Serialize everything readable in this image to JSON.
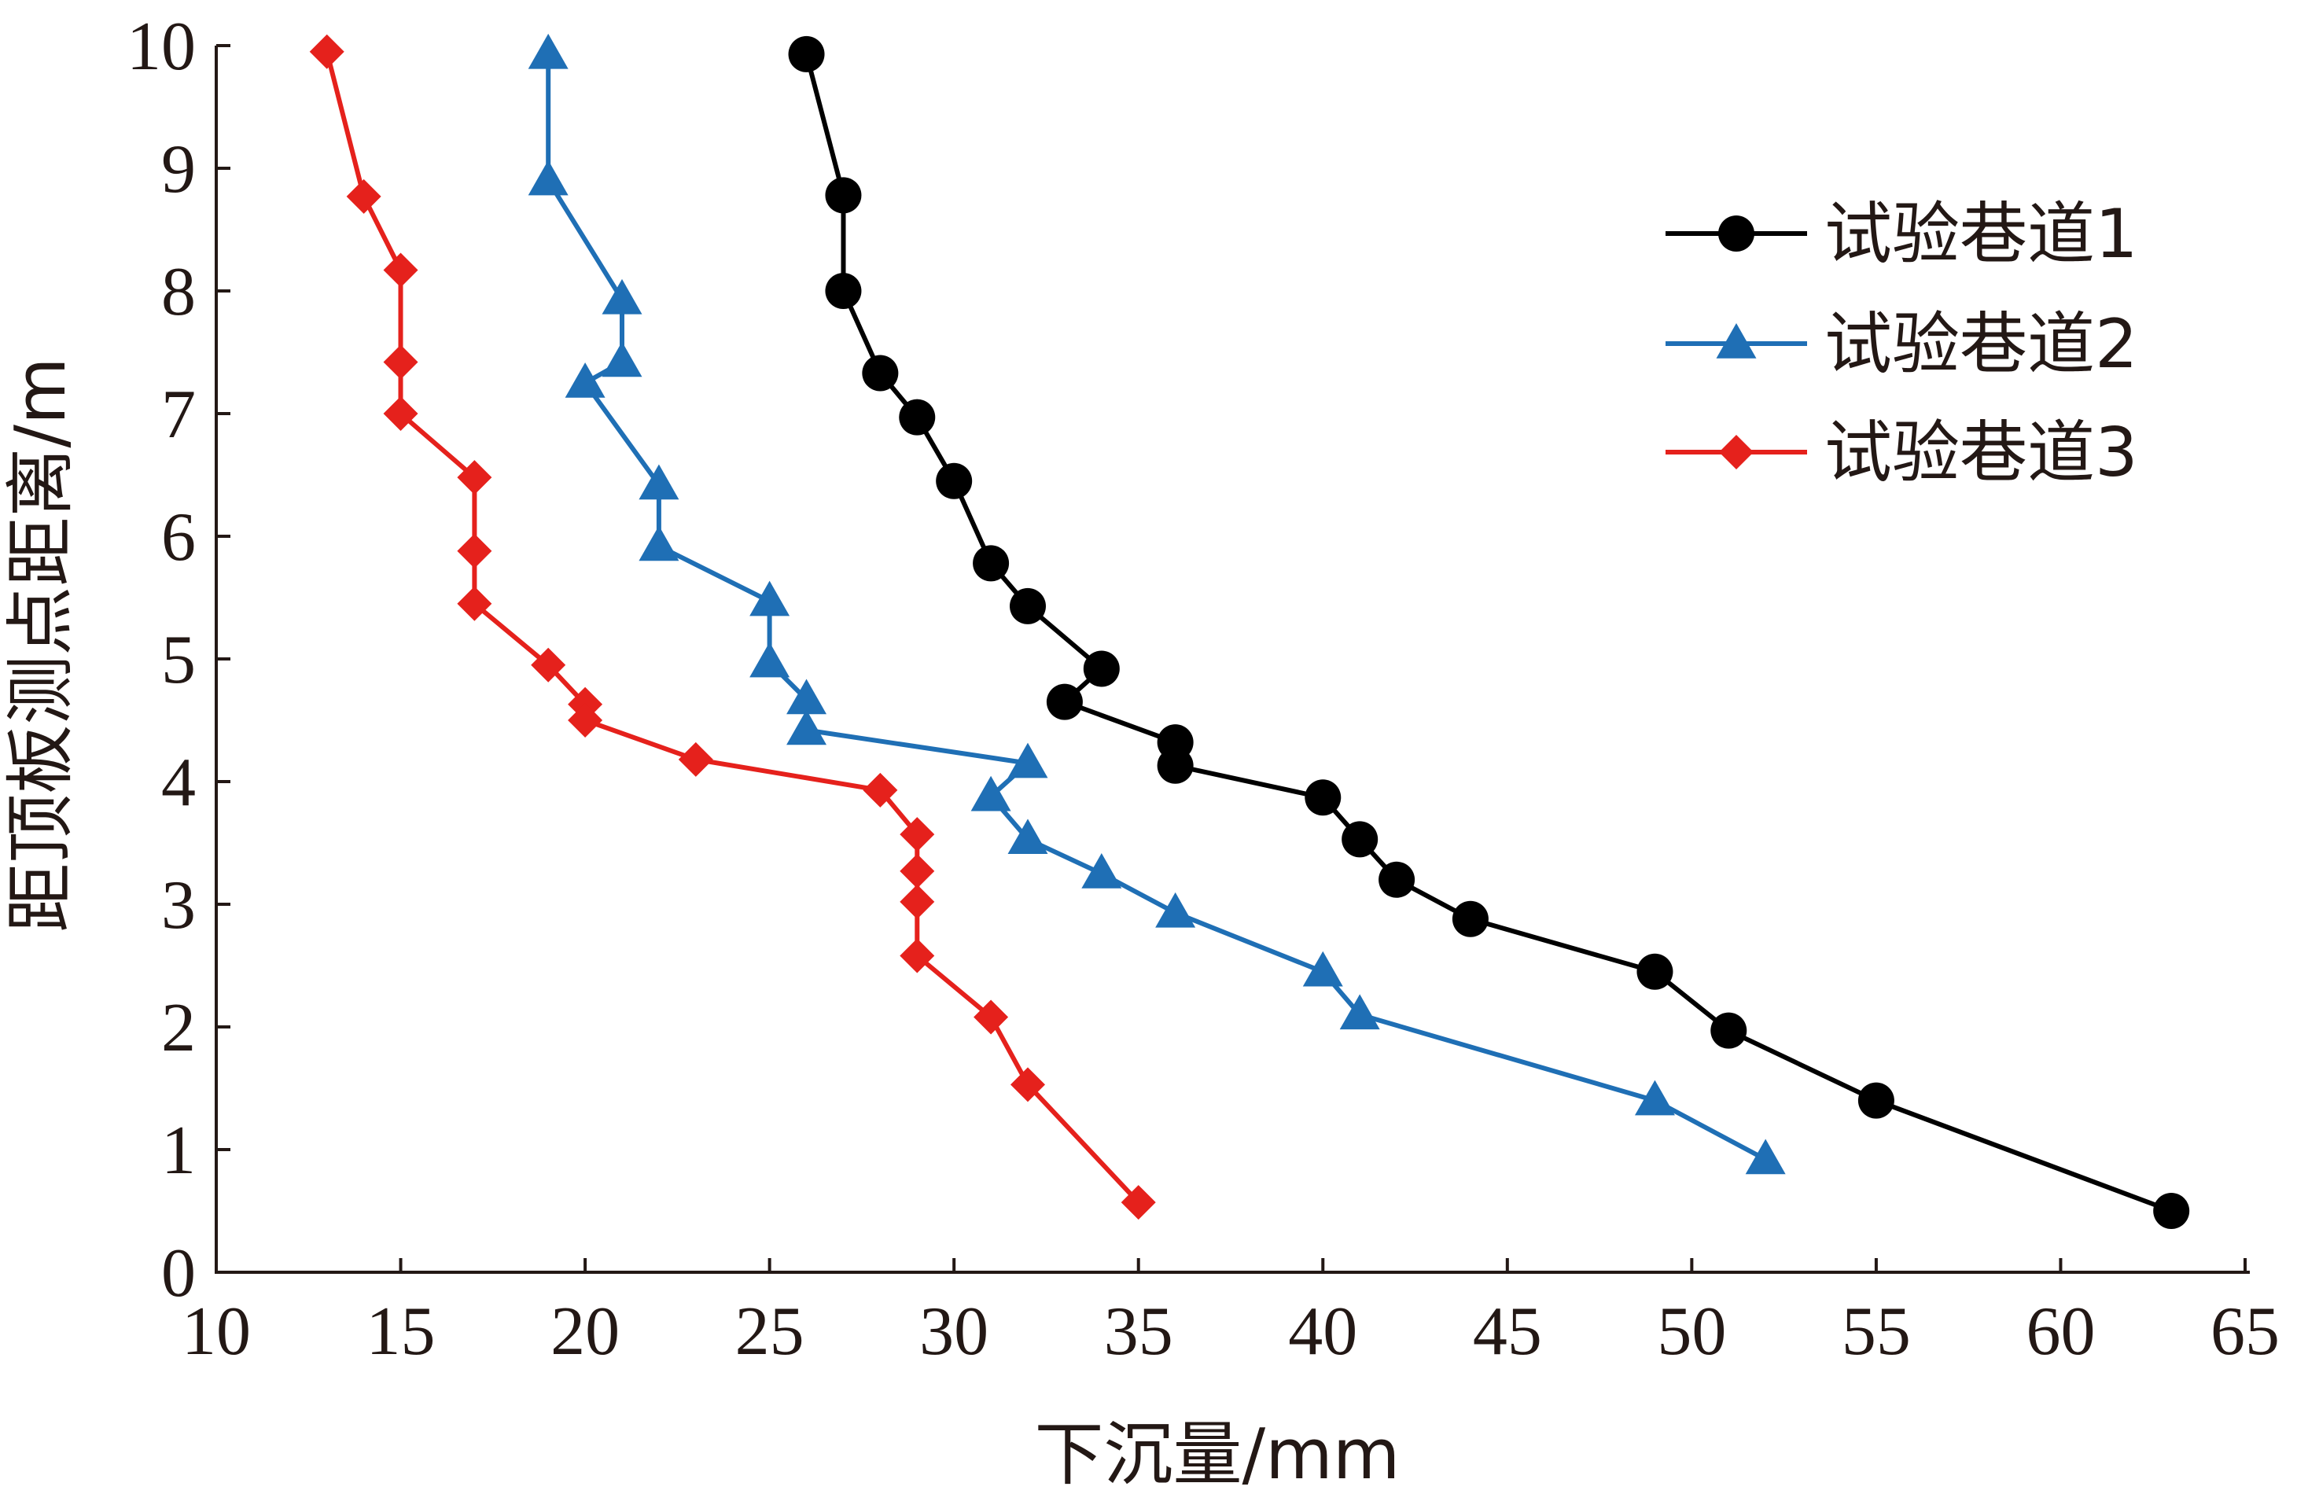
{
  "chart_data": {
    "type": "line",
    "xlabel": "下沉量/mm",
    "ylabel": "距顶板测点距离/m",
    "xlim": [
      10,
      65
    ],
    "ylim": [
      0,
      10
    ],
    "x_ticks": [
      "10",
      "15",
      "20",
      "25",
      "30",
      "35",
      "40",
      "45",
      "50",
      "55",
      "60",
      "65"
    ],
    "y_ticks": [
      "0",
      "1",
      "2",
      "3",
      "4",
      "5",
      "6",
      "7",
      "8",
      "9",
      "10"
    ],
    "grid": false,
    "legend_position": "right",
    "series": [
      {
        "name": "试验巷道1",
        "color": "#000000",
        "marker": "circle",
        "points": [
          [
            26,
            9.93
          ],
          [
            27,
            8.78
          ],
          [
            27,
            8.0
          ],
          [
            28,
            7.33
          ],
          [
            29,
            6.97
          ],
          [
            30,
            6.45
          ],
          [
            31,
            5.78
          ],
          [
            32,
            5.43
          ],
          [
            34,
            4.92
          ],
          [
            33,
            4.65
          ],
          [
            36,
            4.32
          ],
          [
            36,
            4.13
          ],
          [
            40,
            3.87
          ],
          [
            41,
            3.53
          ],
          [
            42,
            3.2
          ],
          [
            44,
            2.88
          ],
          [
            49,
            2.45
          ],
          [
            51,
            1.97
          ],
          [
            55,
            1.4
          ],
          [
            63,
            0.5
          ]
        ]
      },
      {
        "name": "试验巷道2",
        "color": "#1f6fb5",
        "marker": "triangle",
        "points": [
          [
            19,
            9.93
          ],
          [
            19,
            8.9
          ],
          [
            21,
            7.93
          ],
          [
            21,
            7.42
          ],
          [
            20,
            7.25
          ],
          [
            22,
            6.42
          ],
          [
            22,
            5.92
          ],
          [
            25,
            5.47
          ],
          [
            25,
            4.97
          ],
          [
            26,
            4.67
          ],
          [
            26,
            4.42
          ],
          [
            32,
            4.15
          ],
          [
            31,
            3.88
          ],
          [
            32,
            3.53
          ],
          [
            34,
            3.25
          ],
          [
            36,
            2.93
          ],
          [
            40,
            2.45
          ],
          [
            41,
            2.1
          ],
          [
            49,
            1.4
          ],
          [
            52,
            0.92
          ]
        ]
      },
      {
        "name": "试验巷道3",
        "color": "#e5211c",
        "marker": "diamond",
        "points": [
          [
            13,
            9.95
          ],
          [
            14,
            8.77
          ],
          [
            15,
            8.17
          ],
          [
            15,
            7.42
          ],
          [
            15,
            7.0
          ],
          [
            17,
            6.48
          ],
          [
            17,
            5.88
          ],
          [
            17,
            5.45
          ],
          [
            19,
            4.95
          ],
          [
            20,
            4.63
          ],
          [
            20,
            4.5
          ],
          [
            23,
            4.18
          ],
          [
            28,
            3.93
          ],
          [
            29,
            3.57
          ],
          [
            29,
            3.27
          ],
          [
            29,
            3.02
          ],
          [
            29,
            2.58
          ],
          [
            31,
            2.08
          ],
          [
            32,
            1.53
          ],
          [
            35,
            0.57
          ]
        ]
      }
    ]
  }
}
